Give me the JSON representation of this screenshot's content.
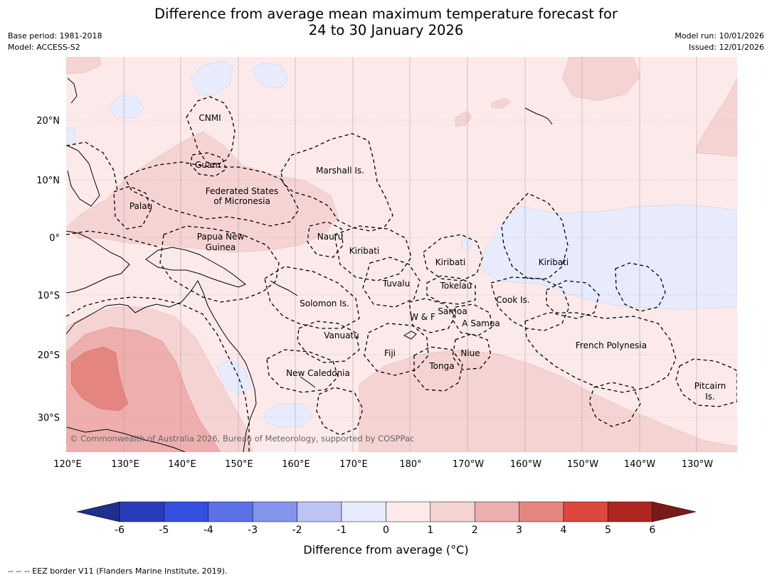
{
  "title": {
    "line1": "Difference from average mean maximum temperature forecast for",
    "line2": "24 to 30 January 2026"
  },
  "meta": {
    "base_period": "Base period: 1981-2018",
    "model": "Model: ACCESS-S2",
    "model_run": "Model run: 10/01/2026",
    "issued": "Issued: 12/01/2026"
  },
  "copyright": "© Commonwealth of Australia 2026, Bureau of Meteorology, supported by COSPPac",
  "lon_ticks": [
    "120°E",
    "130°E",
    "140°E",
    "150°E",
    "160°E",
    "170°E",
    "180°",
    "170°W",
    "160°W",
    "150°W",
    "140°W",
    "130°W"
  ],
  "lat_ticks": [
    "20°N",
    "10°N",
    "0°",
    "10°S",
    "20°S",
    "30°S"
  ],
  "region_labels": [
    {
      "name": "region-cnmi",
      "text": "CNMI"
    },
    {
      "name": "region-guam",
      "text": "Guam"
    },
    {
      "name": "region-marshall",
      "text": "Marshall Is."
    },
    {
      "name": "region-fsm-1",
      "text": "Federated States"
    },
    {
      "name": "region-fsm-2",
      "text": "of Micronesia"
    },
    {
      "name": "region-palau",
      "text": "Palau"
    },
    {
      "name": "region-png-1",
      "text": "Papua New"
    },
    {
      "name": "region-png-2",
      "text": "Guinea"
    },
    {
      "name": "region-nauru",
      "text": "Nauru"
    },
    {
      "name": "region-kiribati-w",
      "text": "Kiribati"
    },
    {
      "name": "region-kiribati-c",
      "text": "Kiribati"
    },
    {
      "name": "region-kiribati-e",
      "text": "Kiribati"
    },
    {
      "name": "region-tuvalu",
      "text": "Tuvalu"
    },
    {
      "name": "region-tokelau",
      "text": "Tokelau"
    },
    {
      "name": "region-cook",
      "text": "Cook Is."
    },
    {
      "name": "region-solomon",
      "text": "Solomon Is."
    },
    {
      "name": "region-samoa",
      "text": "Samoa"
    },
    {
      "name": "region-wf",
      "text": "W & F"
    },
    {
      "name": "region-asamoa",
      "text": "A Samoa"
    },
    {
      "name": "region-vanuatu",
      "text": "Vanuatu"
    },
    {
      "name": "region-fiji",
      "text": "Fiji"
    },
    {
      "name": "region-niue",
      "text": "Niue"
    },
    {
      "name": "region-frpoly",
      "text": "French Polynesia"
    },
    {
      "name": "region-tonga",
      "text": "Tonga"
    },
    {
      "name": "region-newcal",
      "text": "New Caledonia"
    },
    {
      "name": "region-pitcairn-1",
      "text": "Pitcairn"
    },
    {
      "name": "region-pitcairn-2",
      "text": "Is."
    }
  ],
  "colorbar": {
    "ticks": [
      "-6",
      "-5",
      "-4",
      "-3",
      "-2",
      "-1",
      "0",
      "1",
      "2",
      "3",
      "4",
      "5",
      "6"
    ],
    "colors": [
      "#1f2f8f",
      "#2a3db8",
      "#3350e0",
      "#5a72e6",
      "#8494ec",
      "#bcc4f4",
      "#e8ebfc",
      "#fceaea",
      "#f6d3d3",
      "#eeaeae",
      "#e5857f",
      "#dc483e",
      "#ad2620",
      "#7a1a18"
    ],
    "label": "Difference from average (°C)"
  },
  "footnote": "--  --  -- EEZ border V11 (Flanders Marine Institute, 2019)."
}
